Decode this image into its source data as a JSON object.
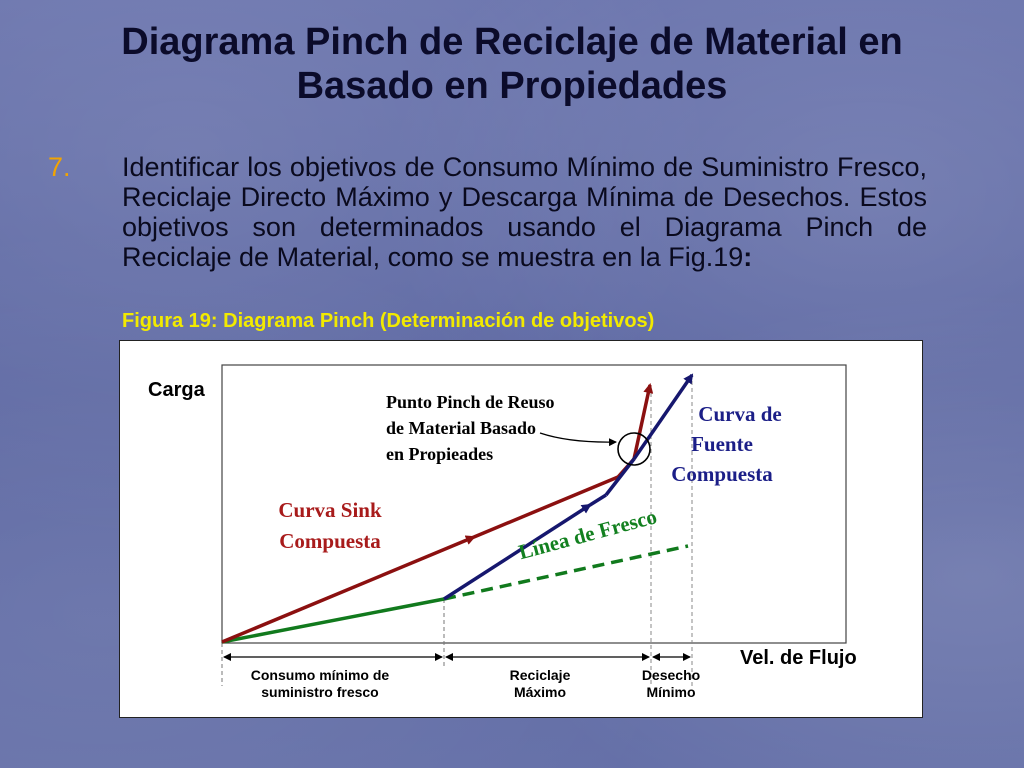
{
  "slide": {
    "title_line1": "Diagrama Pinch de Reciclaje de Material en",
    "title_line2": "Basado en Propiedades",
    "item_number": "7.",
    "item_text": "Identificar los objetivos de Consumo Mínimo de Suministro Fresco, Reciclaje Directo Máximo y Descarga Mínima de Desechos. Estos objetivos son determinados usando el Diagrama Pinch de Reciclaje de Material, como se muestra en la Fig.19",
    "item_colon": ":",
    "figure_caption": "Figura 19: Diagrama Pinch (Determinación de objetivos)"
  },
  "diagram": {
    "y_axis_label": "Carga",
    "x_axis_label": "Vel. de Flujo",
    "pinch_label_1": "Punto Pinch de Reuso",
    "pinch_label_2": "de Material Basado",
    "pinch_label_3": "en Propieades",
    "source_label_1": "Curva de",
    "source_label_2": "Fuente",
    "source_label_3": "Compuesta",
    "sink_label_1": "Curva Sink",
    "sink_label_2": "Compuesta",
    "fresh_line_label": "Línea de Fresco",
    "consumo_1": "Consumo mínimo de",
    "consumo_2": "suministro fresco",
    "reciclaje_1": "Reciclaje",
    "reciclaje_2": "Máximo",
    "desecho_1": "Desecho",
    "desecho_2": "Mínimo"
  },
  "colors": {
    "sink_curve": "#8b1010",
    "source_curve": "#16176e",
    "fresh_line": "#117a1d",
    "label_red": "#a81b1b",
    "label_blue": "#1b1e87",
    "label_green": "#12801f"
  }
}
